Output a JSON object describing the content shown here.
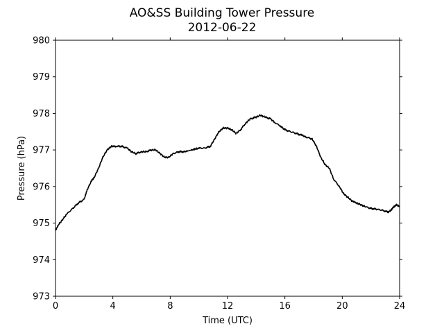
{
  "chart_data": {
    "type": "line",
    "title": "AO&SS Building Tower Pressure",
    "subtitle": "2012-06-22",
    "xlabel": "Time (UTC)",
    "ylabel": "Pressure (hPa)",
    "xlim": [
      0,
      24
    ],
    "ylim": [
      973,
      980
    ],
    "xticks": [
      0,
      4,
      8,
      12,
      16,
      20,
      24
    ],
    "yticks": [
      973,
      974,
      975,
      976,
      977,
      978,
      979,
      980
    ],
    "grid": false,
    "legend": "none",
    "line_color": "#000000",
    "series": [
      {
        "x": [
          0.0,
          0.2,
          0.5,
          0.8,
          1.2,
          1.6,
          2.0,
          2.2,
          2.5,
          2.7,
          3.0,
          3.3,
          3.6,
          3.9,
          4.2,
          4.6,
          5.0,
          5.3,
          5.6,
          6.0,
          6.3,
          6.7,
          7.0,
          7.3,
          7.6,
          7.9,
          8.2,
          8.6,
          9.0,
          9.5,
          10.0,
          10.4,
          10.8,
          11.1,
          11.4,
          11.7,
          12.0,
          12.3,
          12.6,
          12.9,
          13.3,
          13.6,
          14.0,
          14.3,
          14.6,
          15.0,
          15.3,
          15.7,
          16.0,
          16.4,
          16.8,
          17.2,
          17.5,
          17.9,
          18.2,
          18.5,
          18.8,
          19.1,
          19.4,
          19.8,
          20.1,
          20.4,
          20.7,
          21.0,
          21.3,
          21.6,
          22.0,
          22.4,
          22.8,
          23.2,
          23.4,
          23.6,
          23.8,
          24.0
        ],
        "y": [
          974.8,
          974.95,
          975.1,
          975.25,
          975.4,
          975.55,
          975.65,
          975.9,
          976.15,
          976.25,
          976.5,
          976.8,
          977.0,
          977.1,
          977.1,
          977.1,
          977.05,
          976.95,
          976.9,
          976.95,
          976.95,
          977.0,
          977.0,
          976.9,
          976.8,
          976.8,
          976.9,
          976.95,
          976.95,
          977.0,
          977.05,
          977.05,
          977.1,
          977.3,
          977.5,
          977.6,
          977.6,
          977.55,
          977.45,
          977.55,
          977.75,
          977.85,
          977.9,
          977.95,
          977.9,
          977.85,
          977.75,
          977.65,
          977.55,
          977.5,
          977.45,
          977.4,
          977.35,
          977.3,
          977.1,
          976.8,
          976.6,
          976.5,
          976.2,
          976.0,
          975.8,
          975.7,
          975.6,
          975.55,
          975.5,
          975.45,
          975.4,
          975.38,
          975.35,
          975.3,
          975.35,
          975.45,
          975.5,
          975.45
        ]
      }
    ]
  }
}
